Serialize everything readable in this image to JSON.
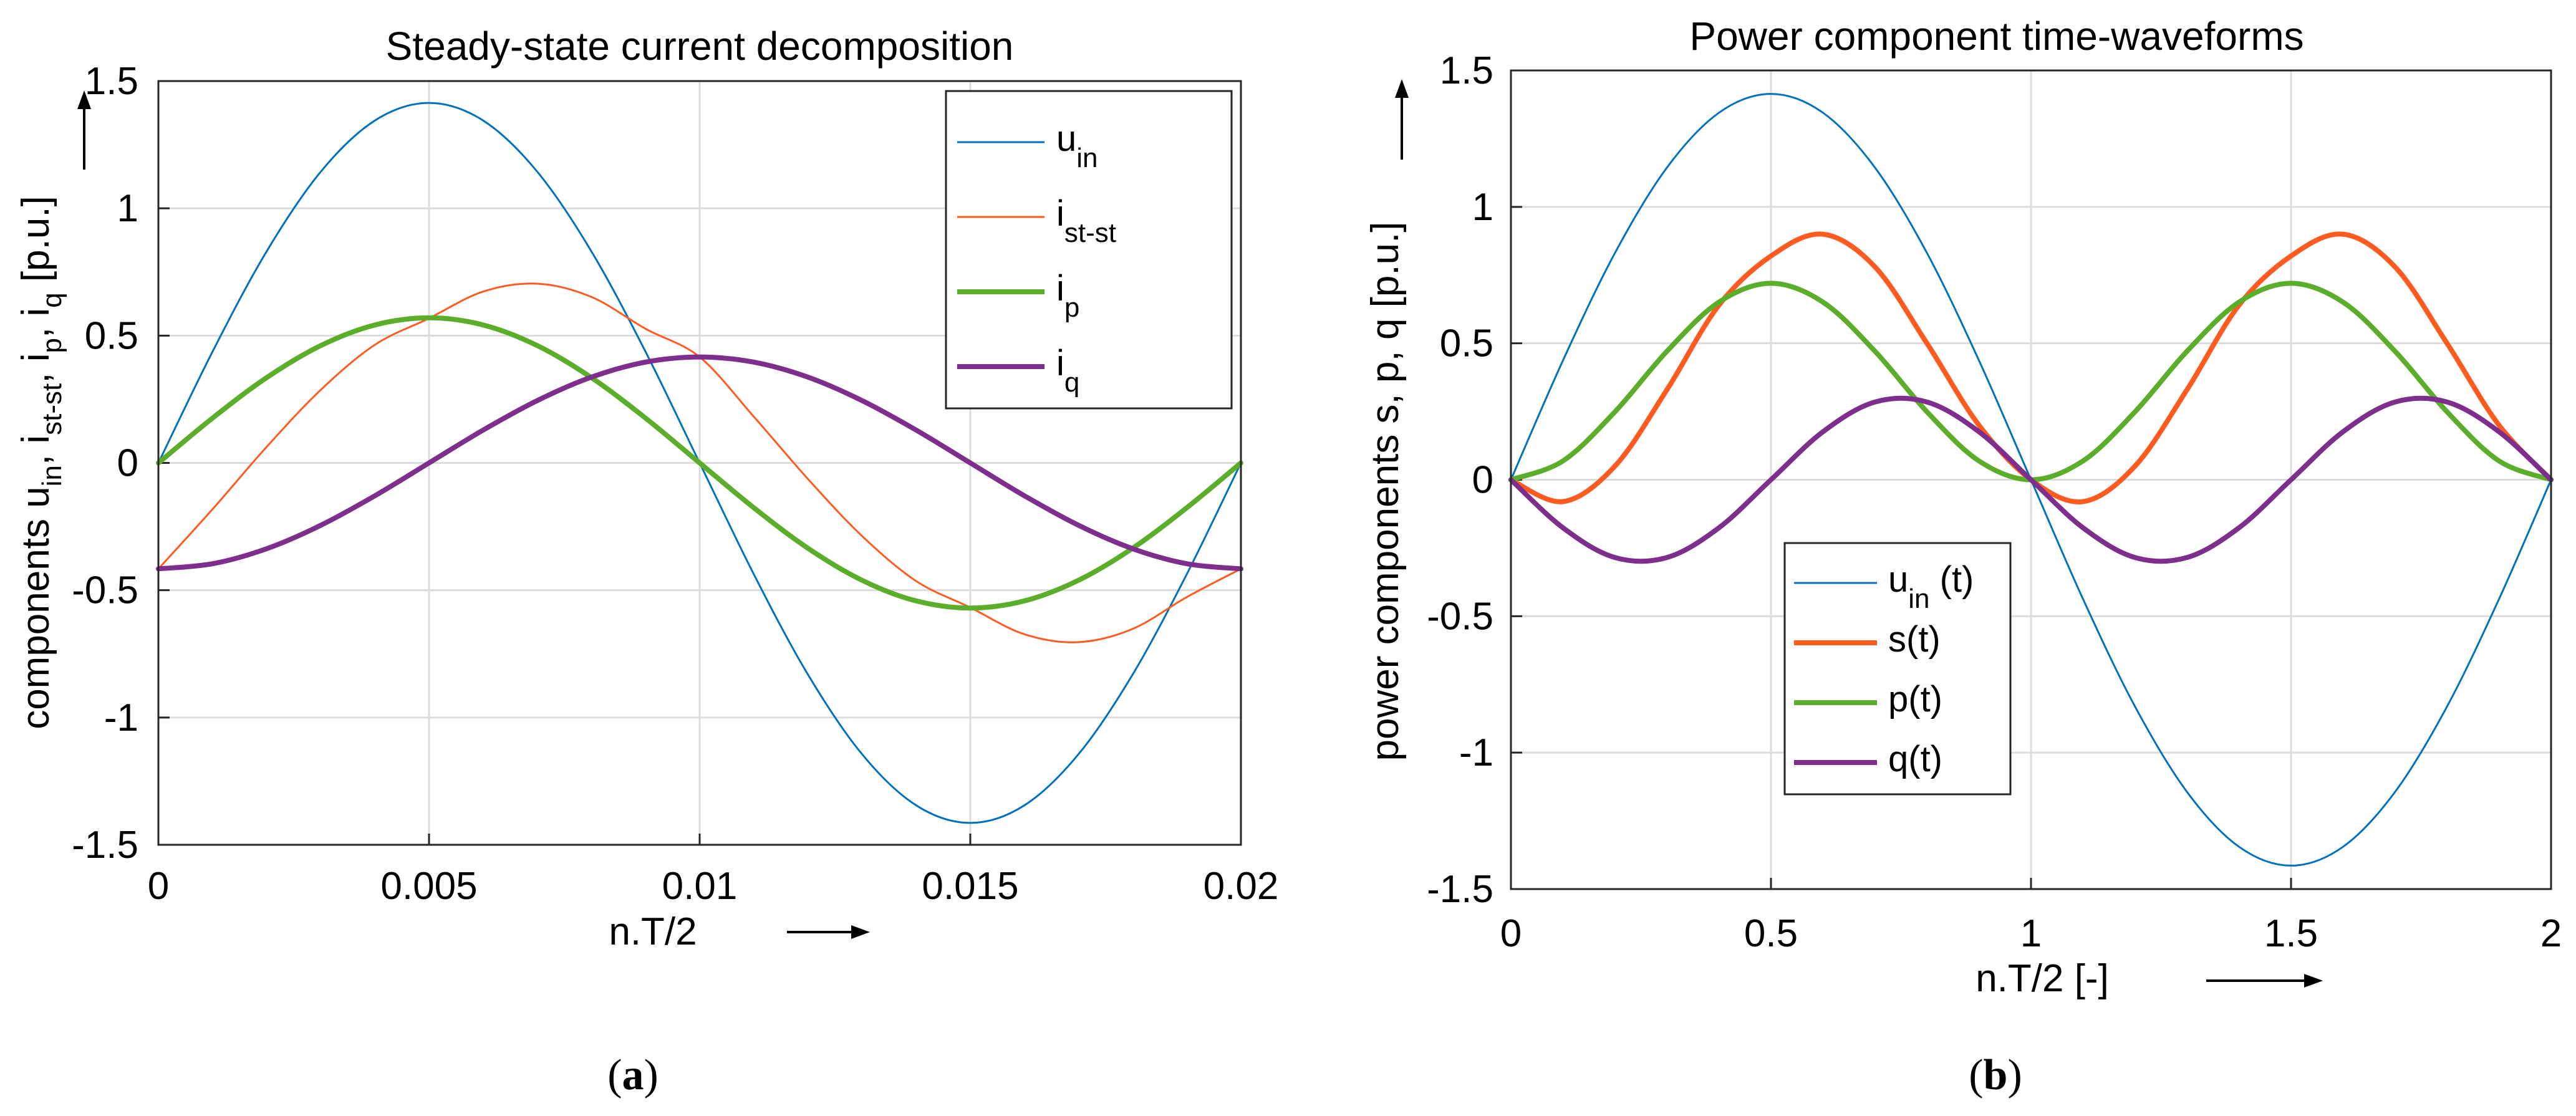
{
  "figure": {
    "caption_a": {
      "open": "(",
      "letter": "a",
      "close": ")"
    },
    "caption_b": {
      "open": "(",
      "letter": "b",
      "close": ")"
    }
  },
  "colors": {
    "blue": "#0072BD",
    "orange": "#FF5A1F",
    "green": "#5AAE2A",
    "purple": "#7E2F8E",
    "grid": "#DCDCDC",
    "axis": "#262626"
  },
  "chart_data": [
    {
      "type": "line",
      "title": "Steady-state current decomposition",
      "xlabel": "n.T/2",
      "ylabel_parts": [
        {
          "t": "components u",
          "sub": false
        },
        {
          "t": "in",
          "sub": true
        },
        {
          "t": ", i",
          "sub": false
        },
        {
          "t": "st-st",
          "sub": true
        },
        {
          "t": ", i",
          "sub": false
        },
        {
          "t": "p",
          "sub": true
        },
        {
          "t": ", i",
          "sub": false
        },
        {
          "t": "q",
          "sub": true
        },
        {
          "t": "  [p.u.]",
          "sub": false
        }
      ],
      "xlim": [
        0,
        0.02
      ],
      "ylim": [
        -1.5,
        1.5
      ],
      "xticks": [
        0,
        0.005,
        0.01,
        0.015,
        0.02
      ],
      "xtick_labels": [
        "0",
        "0.005",
        "0.01",
        "0.015",
        "0.02"
      ],
      "yticks": [
        -1.5,
        -1,
        -0.5,
        0,
        0.5,
        1,
        1.5
      ],
      "ytick_labels": [
        "-1.5",
        "-1",
        "-0.5",
        "0",
        "0.5",
        "1",
        "1.5"
      ],
      "grid": true,
      "legend_position": "top-right",
      "x": [
        0,
        0.001,
        0.002,
        0.003,
        0.004,
        0.005,
        0.006,
        0.007,
        0.008,
        0.009,
        0.01,
        0.011,
        0.012,
        0.013,
        0.014,
        0.015,
        0.016,
        0.017,
        0.018,
        0.019,
        0.02
      ],
      "series": [
        {
          "name": "u_in",
          "legend": {
            "main": "u",
            "sub": "in"
          },
          "color": "blue",
          "width": 3,
          "values": [
            0,
            0.437,
            0.831,
            1.144,
            1.345,
            1.414,
            1.345,
            1.144,
            0.831,
            0.437,
            0,
            -0.437,
            -0.831,
            -1.144,
            -1.345,
            -1.414,
            -1.345,
            -1.144,
            -0.831,
            -0.437,
            0
          ]
        },
        {
          "name": "i_st-st",
          "legend": {
            "main": "i",
            "sub": "st-st"
          },
          "color": "orange",
          "width": 3,
          "values": [
            -0.416,
            -0.182,
            0.063,
            0.287,
            0.464,
            0.568,
            0.673,
            0.704,
            0.652,
            0.527,
            0.416,
            0.182,
            -0.063,
            -0.287,
            -0.464,
            -0.568,
            -0.673,
            -0.704,
            -0.652,
            -0.527,
            -0.416
          ]
        },
        {
          "name": "i_p",
          "legend": {
            "main": "i",
            "sub": "p"
          },
          "color": "green",
          "width": 8,
          "values": [
            0,
            0.176,
            0.335,
            0.461,
            0.542,
            0.57,
            0.542,
            0.461,
            0.335,
            0.176,
            0,
            -0.176,
            -0.335,
            -0.461,
            -0.542,
            -0.57,
            -0.542,
            -0.461,
            -0.335,
            -0.176,
            0
          ]
        },
        {
          "name": "i_q",
          "legend": {
            "main": "i",
            "sub": "q"
          },
          "color": "purple",
          "width": 8,
          "values": [
            -0.416,
            -0.396,
            -0.337,
            -0.245,
            -0.129,
            0,
            0.129,
            0.245,
            0.337,
            0.396,
            0.416,
            0.396,
            0.337,
            0.245,
            0.129,
            0,
            -0.129,
            -0.245,
            -0.337,
            -0.396,
            -0.416
          ]
        }
      ]
    },
    {
      "type": "line",
      "title": "Power component time-waveforms",
      "xlabel": "n.T/2  [-]",
      "ylabel_parts": [
        {
          "t": "power components s, p, q  [p.u.]",
          "sub": false
        }
      ],
      "xlim": [
        0,
        2
      ],
      "ylim": [
        -1.5,
        1.5
      ],
      "xticks": [
        0,
        0.5,
        1,
        1.5,
        2
      ],
      "xtick_labels": [
        "0",
        "0.5",
        "1",
        "1.5",
        "2"
      ],
      "yticks": [
        -1.5,
        -1,
        -0.5,
        0,
        0.5,
        1,
        1.5
      ],
      "ytick_labels": [
        "-1.5",
        "-1",
        "-0.5",
        "0",
        "0.5",
        "1",
        "1.5"
      ],
      "grid": true,
      "legend_position": "bottom-center",
      "x": [
        0,
        0.1,
        0.2,
        0.3,
        0.4,
        0.5,
        0.6,
        0.7,
        0.8,
        0.9,
        1,
        1.1,
        1.2,
        1.3,
        1.4,
        1.5,
        1.6,
        1.7,
        1.8,
        1.9,
        2
      ],
      "series": [
        {
          "name": "u_in (t)",
          "legend": {
            "main": "u",
            "sub": "in",
            "tail": " (t)"
          },
          "color": "blue",
          "width": 3,
          "values": [
            0,
            0.437,
            0.831,
            1.144,
            1.345,
            1.414,
            1.345,
            1.144,
            0.831,
            0.437,
            0,
            -0.437,
            -0.831,
            -1.144,
            -1.345,
            -1.414,
            -1.345,
            -1.144,
            -0.831,
            -0.437,
            0
          ]
        },
        {
          "name": "s(t)",
          "legend": {
            "main": "s(t)"
          },
          "color": "orange",
          "width": 8,
          "values": [
            0,
            -0.08,
            0.05,
            0.33,
            0.64,
            0.82,
            0.9,
            0.78,
            0.5,
            0.2,
            0,
            -0.08,
            0.05,
            0.33,
            0.64,
            0.82,
            0.9,
            0.78,
            0.5,
            0.2,
            0
          ]
        },
        {
          "name": "p(t)",
          "legend": {
            "main": "p(t)"
          },
          "color": "green",
          "width": 8,
          "values": [
            0,
            0.069,
            0.249,
            0.471,
            0.651,
            0.72,
            0.651,
            0.471,
            0.249,
            0.069,
            0,
            0.069,
            0.249,
            0.471,
            0.651,
            0.72,
            0.651,
            0.471,
            0.249,
            0.069,
            0
          ]
        },
        {
          "name": "q(t)",
          "legend": {
            "main": "q(t)"
          },
          "color": "purple",
          "width": 8,
          "values": [
            0,
            -0.176,
            -0.285,
            -0.285,
            -0.176,
            0,
            0.176,
            0.285,
            0.285,
            0.176,
            0,
            -0.176,
            -0.285,
            -0.285,
            -0.176,
            0,
            0.176,
            0.285,
            0.285,
            0.176,
            0
          ]
        }
      ]
    }
  ]
}
